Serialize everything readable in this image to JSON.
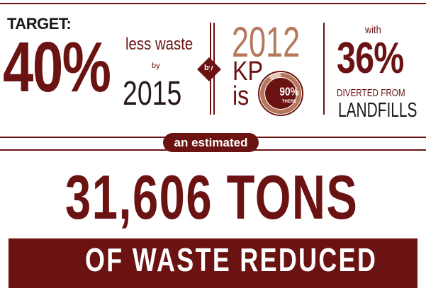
{
  "colors": {
    "primary": "#6b1212",
    "accent": "#b5775a"
  },
  "target": {
    "label": "TARGET:",
    "percent": "40%",
    "less_waste": "less waste",
    "by": "by",
    "year": "2015"
  },
  "connector": {
    "by": "by"
  },
  "progress": {
    "year": "2012",
    "kp": "KP",
    "is": "is",
    "donut_percent": "90%",
    "donut_label": "THERE",
    "donut_fraction": 0.9
  },
  "diverted": {
    "with": "with",
    "percent": "36%",
    "from": "DIVERTED FROM",
    "landfills": "LANDFILLS"
  },
  "estimate": {
    "pill": "an estimated",
    "tons": "31,606 TONS",
    "band": "OF WASTE REDUCED"
  }
}
